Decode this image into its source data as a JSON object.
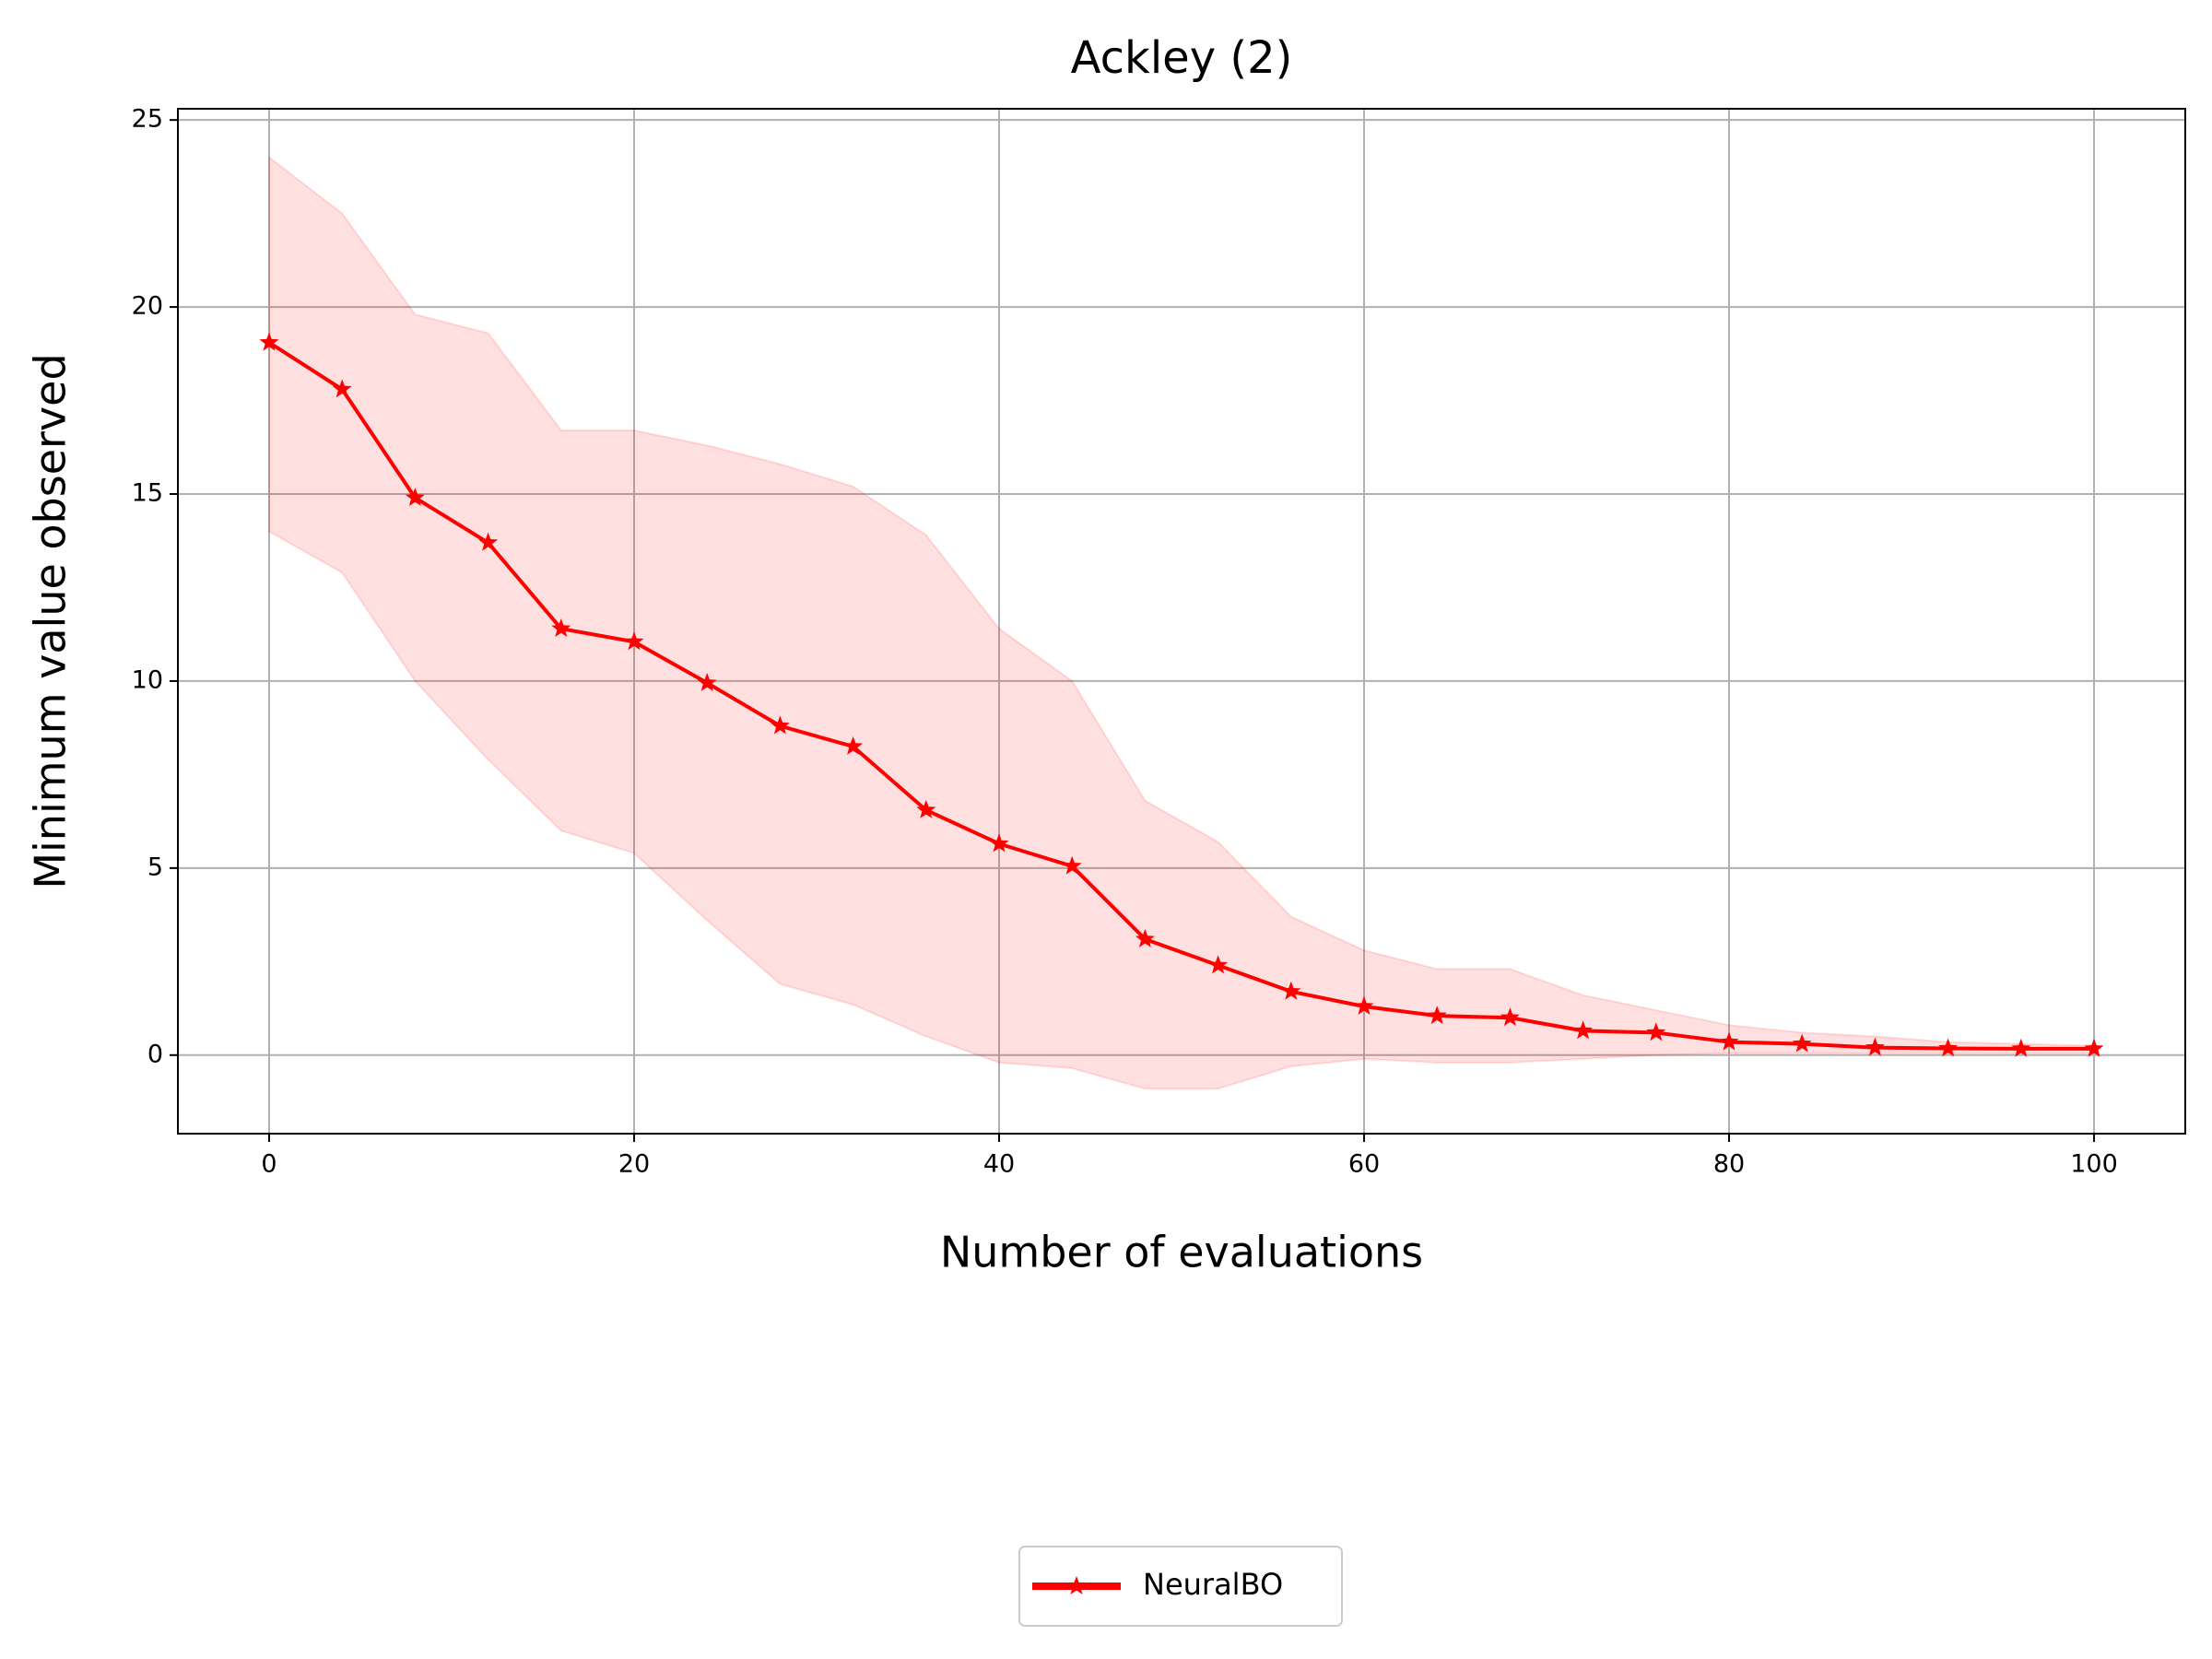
{
  "chart_data": {
    "type": "line",
    "title": "Ackley (2)",
    "x_label": "Number of evaluations",
    "y_label": "Minimum value observed",
    "x": [
      0,
      4,
      8,
      12,
      16,
      20,
      24,
      28,
      32,
      36,
      40,
      44,
      48,
      52,
      56,
      60,
      64,
      68,
      72,
      76,
      80,
      84,
      88,
      92,
      96,
      100
    ],
    "series": [
      {
        "name": "NeuralBO",
        "color": "#ff0000",
        "values": [
          19.05,
          17.8,
          14.9,
          13.7,
          11.4,
          11.05,
          9.95,
          8.8,
          8.25,
          6.55,
          5.65,
          5.05,
          3.1,
          2.4,
          1.7,
          1.3,
          1.05,
          1.0,
          0.65,
          0.6,
          0.35,
          0.3,
          0.2,
          0.18,
          0.17,
          0.17
        ],
        "upper": [
          24.0,
          22.5,
          19.8,
          19.3,
          16.7,
          16.7,
          16.3,
          15.8,
          15.2,
          13.9,
          11.4,
          10.0,
          6.8,
          5.7,
          3.7,
          2.8,
          2.3,
          2.3,
          1.6,
          1.2,
          0.8,
          0.6,
          0.5,
          0.35,
          0.3,
          0.25
        ],
        "lower": [
          14.0,
          12.9,
          10.0,
          7.9,
          6.0,
          5.4,
          3.6,
          1.9,
          1.35,
          0.5,
          -0.2,
          -0.35,
          -0.9,
          -0.9,
          -0.3,
          -0.1,
          -0.2,
          -0.2,
          -0.1,
          0.0,
          0.05,
          0.05,
          0.05,
          0.05,
          0.05,
          0.05
        ]
      }
    ],
    "xlim": [
      -5,
      105
    ],
    "ylim": [
      -2.1,
      25.3
    ],
    "xticks": [
      0,
      20,
      40,
      60,
      80,
      100
    ],
    "yticks": [
      0,
      5,
      10,
      15,
      20,
      25
    ],
    "grid": true,
    "legend": "below"
  }
}
